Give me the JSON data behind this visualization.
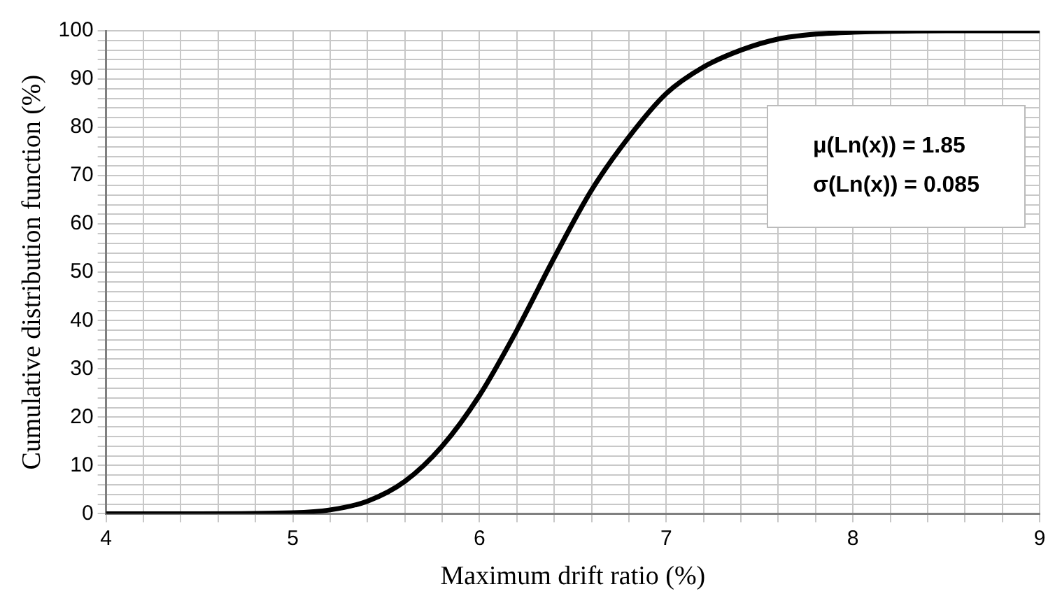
{
  "chart_data": {
    "type": "line",
    "xlabel": "Maximum drift ratio (%)",
    "ylabel": "Cumulative distribution function (%)",
    "annotations": [
      "μ(Ln(x)) = 1.85",
      "σ(Ln(x)) = 0.085"
    ],
    "x": [
      4,
      4.5,
      5,
      5.2,
      5.4,
      5.6,
      5.8,
      6,
      6.2,
      6.4,
      6.6,
      6.8,
      7,
      7.2,
      7.4,
      7.6,
      7.8,
      8,
      8.5,
      9
    ],
    "series": [
      {
        "color": "#000000",
        "values": [
          0,
          0,
          0.2,
          0.8,
          2.6,
          6.7,
          14,
          24.5,
          38,
          53,
          67,
          78,
          87,
          92.5,
          96,
          98.3,
          99.3,
          99.7,
          100,
          100
        ]
      }
    ],
    "xlim": [
      4,
      9
    ],
    "xticks": [
      4,
      {
        "value": 4.2,
        "label": null
      },
      {
        "value": 4.4,
        "label": null
      },
      {
        "value": 4.6,
        "label": null
      },
      {
        "value": 4.8,
        "label": null
      },
      5,
      {
        "value": 5.2,
        "label": null
      },
      {
        "value": 5.4,
        "label": null
      },
      {
        "value": 5.6,
        "label": null
      },
      {
        "value": 5.8,
        "label": null
      },
      6,
      {
        "value": 6.2,
        "label": null
      },
      {
        "value": 6.4,
        "label": null
      },
      {
        "value": 6.6,
        "label": null
      },
      {
        "value": 6.8,
        "label": null
      },
      7,
      {
        "value": 7.2,
        "label": null
      },
      {
        "value": 7.4,
        "label": null
      },
      {
        "value": 7.6,
        "label": null
      },
      {
        "value": 7.8,
        "label": null
      },
      8,
      {
        "value": 8.2,
        "label": null
      },
      {
        "value": 8.4,
        "label": null
      },
      {
        "value": 8.6,
        "label": null
      },
      {
        "value": 8.8,
        "label": null
      },
      9
    ],
    "ylim": [
      0,
      100
    ],
    "yticks": [
      0,
      {
        "value": 2,
        "label": null
      },
      {
        "value": 4,
        "label": null
      },
      {
        "value": 6,
        "label": null
      },
      {
        "value": 8,
        "label": null
      },
      10,
      {
        "value": 12,
        "label": null
      },
      {
        "value": 14,
        "label": null
      },
      {
        "value": 16,
        "label": null
      },
      {
        "value": 18,
        "label": null
      },
      20,
      {
        "value": 22,
        "label": null
      },
      {
        "value": 24,
        "label": null
      },
      {
        "value": 26,
        "label": null
      },
      {
        "value": 28,
        "label": null
      },
      30,
      {
        "value": 32,
        "label": null
      },
      {
        "value": 34,
        "label": null
      },
      {
        "value": 36,
        "label": null
      },
      {
        "value": 38,
        "label": null
      },
      40,
      {
        "value": 42,
        "label": null
      },
      {
        "value": 44,
        "label": null
      },
      {
        "value": 46,
        "label": null
      },
      {
        "value": 48,
        "label": null
      },
      50,
      {
        "value": 52,
        "label": null
      },
      {
        "value": 54,
        "label": null
      },
      {
        "value": 56,
        "label": null
      },
      {
        "value": 58,
        "label": null
      },
      60,
      {
        "value": 62,
        "label": null
      },
      {
        "value": 64,
        "label": null
      },
      {
        "value": 66,
        "label": null
      },
      {
        "value": 68,
        "label": null
      },
      70,
      {
        "value": 72,
        "label": null
      },
      {
        "value": 74,
        "label": null
      },
      {
        "value": 76,
        "label": null
      },
      {
        "value": 78,
        "label": null
      },
      80,
      {
        "value": 82,
        "label": null
      },
      {
        "value": 84,
        "label": null
      },
      {
        "value": 86,
        "label": null
      },
      {
        "value": 88,
        "label": null
      },
      90,
      {
        "value": 92,
        "label": null
      },
      {
        "value": 94,
        "label": null
      },
      {
        "value": 96,
        "label": null
      },
      {
        "value": 98,
        "label": null
      },
      100
    ],
    "grid": true,
    "legend": false,
    "marker": "none",
    "line_style": "solid"
  }
}
